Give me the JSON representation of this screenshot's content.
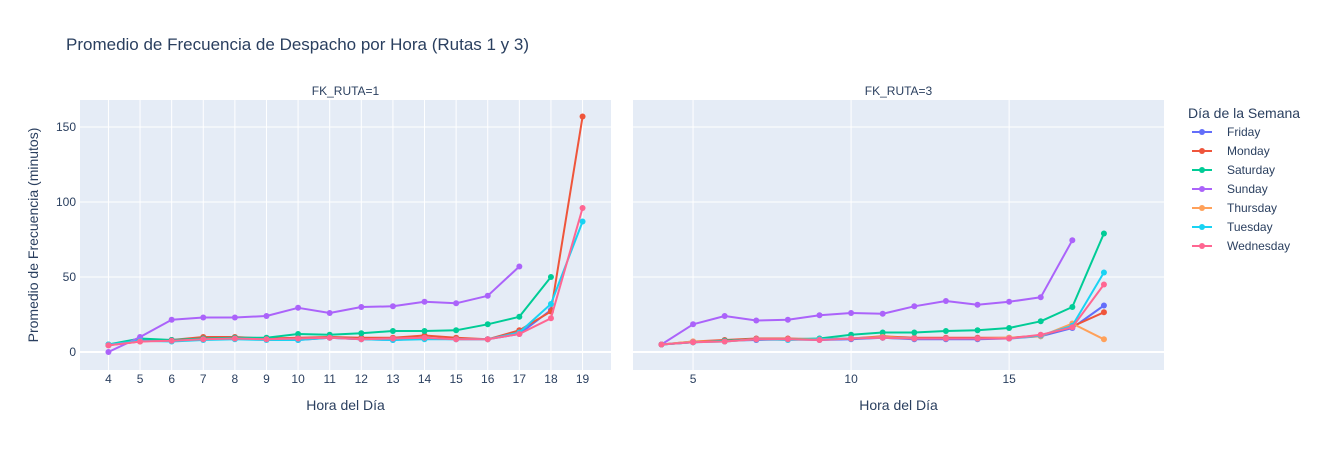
{
  "chart_data": {
    "type": "line",
    "title": "Promedio de Frecuencia de Despacho por Hora (Rutas 1 y 3)",
    "ylabel": "Promedio de Frecuencia (minutos)",
    "xlabel": "Hora del Día",
    "legend_title": "Día de la Semana",
    "legend_position": "right",
    "ylim": [
      -12,
      168
    ],
    "yticks": [
      0,
      50,
      100,
      150
    ],
    "grid": true,
    "colors": {
      "Friday": "#636efa",
      "Monday": "#ef553b",
      "Saturday": "#00cc96",
      "Sunday": "#ab63fa",
      "Thursday": "#ffa15a",
      "Tuesday": "#19d3f3",
      "Wednesday": "#ff6692"
    },
    "panels": [
      {
        "title": "FK_RUTA=1",
        "xlim": [
          3.1,
          19.9
        ],
        "xticks": [
          4,
          5,
          6,
          7,
          8,
          9,
          10,
          11,
          12,
          13,
          14,
          15,
          16,
          17,
          18,
          19
        ],
        "series": [
          {
            "name": "Friday",
            "x": [
              4,
              5,
              6,
              7,
              8,
              9,
              10,
              11,
              12,
              13,
              14,
              15,
              16,
              17,
              18
            ],
            "y": [
              4.5,
              8,
              8,
              8.5,
              9,
              8.5,
              8,
              9.5,
              8.5,
              8,
              9,
              8.5,
              8.5,
              12,
              28
            ]
          },
          {
            "name": "Monday",
            "x": [
              4,
              5,
              6,
              7,
              8,
              9,
              10,
              11,
              12,
              13,
              14,
              15,
              16,
              17,
              18,
              19
            ],
            "y": [
              4.5,
              7,
              8,
              10,
              10,
              9,
              9.5,
              10,
              9.5,
              9.5,
              11,
              9.5,
              8.5,
              14.5,
              27,
              157
            ]
          },
          {
            "name": "Saturday",
            "x": [
              4,
              5,
              6,
              7,
              8,
              9,
              10,
              11,
              12,
              13,
              14,
              15,
              16,
              17,
              18
            ],
            "y": [
              5,
              9,
              8,
              9,
              9.5,
              9.5,
              12,
              11.5,
              12.5,
              14,
              14,
              14.5,
              18.5,
              23.5,
              50
            ]
          },
          {
            "name": "Sunday",
            "x": [
              4,
              5,
              6,
              7,
              8,
              9,
              10,
              11,
              12,
              13,
              14,
              15,
              16,
              17
            ],
            "y": [
              0,
              10,
              21.5,
              23,
              23,
              24,
              29.5,
              26,
              30,
              30.5,
              33.5,
              32.5,
              37.5,
              57
            ]
          },
          {
            "name": "Tuesday",
            "x": [
              4,
              5,
              6,
              7,
              8,
              9,
              10,
              11,
              12,
              13,
              14,
              15,
              16,
              17,
              18,
              19
            ],
            "y": [
              5,
              7.5,
              7,
              8,
              8.5,
              8,
              8,
              9.5,
              8.5,
              8,
              8.5,
              8.5,
              8.5,
              13,
              32,
              87
            ]
          },
          {
            "name": "Wednesday",
            "x": [
              4,
              5,
              6,
              7,
              8,
              9,
              10,
              11,
              12,
              13,
              14,
              15,
              16,
              17,
              18,
              19
            ],
            "y": [
              4.5,
              7,
              7.5,
              8.5,
              9,
              8.5,
              9,
              9.5,
              8.5,
              9,
              9.5,
              8.5,
              8.5,
              12,
              22.5,
              96
            ]
          }
        ]
      },
      {
        "title": "FK_RUTA=3",
        "xlim": [
          3.1,
          19.9
        ],
        "xticks": [
          5,
          10,
          15
        ],
        "series": [
          {
            "name": "Friday",
            "x": [
              4,
              5,
              6,
              7,
              8,
              9,
              10,
              11,
              12,
              13,
              14,
              15,
              16,
              17,
              18
            ],
            "y": [
              5,
              6.5,
              7.5,
              8,
              8.5,
              8,
              8.5,
              9.5,
              8.5,
              8.5,
              8.5,
              9,
              10.5,
              16,
              31
            ]
          },
          {
            "name": "Monday",
            "x": [
              4,
              5,
              6,
              7,
              8,
              9,
              10,
              11,
              12,
              13,
              14,
              15,
              16,
              17,
              18
            ],
            "y": [
              5,
              7,
              8,
              9,
              9,
              8.5,
              9,
              10.5,
              9.5,
              9.5,
              9.5,
              9.5,
              11,
              17,
              26.5
            ]
          },
          {
            "name": "Saturday",
            "x": [
              4,
              5,
              6,
              7,
              8,
              9,
              10,
              11,
              12,
              13,
              14,
              15,
              16,
              17,
              18
            ],
            "y": [
              5,
              6.5,
              7.5,
              8.5,
              8.5,
              9,
              11.5,
              13,
              13,
              14,
              14.5,
              16,
              20.5,
              30,
              79
            ]
          },
          {
            "name": "Sunday",
            "x": [
              4,
              5,
              6,
              7,
              8,
              9,
              10,
              11,
              12,
              13,
              14,
              15,
              16,
              17
            ],
            "y": [
              5,
              18.5,
              24,
              21,
              21.5,
              24.5,
              26,
              25.5,
              30.5,
              34,
              31.5,
              33.5,
              36.5,
              74.5
            ]
          },
          {
            "name": "Thursday",
            "x": [
              4,
              5,
              6,
              7,
              8,
              9,
              10,
              11,
              12,
              13,
              14,
              15,
              16,
              17,
              18
            ],
            "y": [
              5,
              7,
              7,
              8.5,
              8.5,
              8.5,
              9,
              10,
              9,
              9,
              9,
              9.5,
              10.5,
              19,
              8.5
            ]
          },
          {
            "name": "Tuesday",
            "x": [
              4,
              5,
              6,
              7,
              8,
              9,
              10,
              11,
              12,
              13,
              14,
              15,
              16,
              17,
              18
            ],
            "y": [
              5,
              6.5,
              7,
              8.5,
              8,
              8.5,
              9,
              9.5,
              9,
              9,
              9,
              9,
              11,
              17.5,
              53
            ]
          },
          {
            "name": "Wednesday",
            "x": [
              4,
              5,
              6,
              7,
              8,
              9,
              10,
              11,
              12,
              13,
              14,
              15,
              16,
              17,
              18
            ],
            "y": [
              5,
              6.5,
              7,
              8.5,
              8.5,
              8,
              9,
              9.5,
              9,
              9,
              9,
              9,
              11.5,
              16.5,
              45
            ]
          }
        ]
      }
    ],
    "legend": [
      "Friday",
      "Monday",
      "Saturday",
      "Sunday",
      "Thursday",
      "Tuesday",
      "Wednesday"
    ]
  }
}
